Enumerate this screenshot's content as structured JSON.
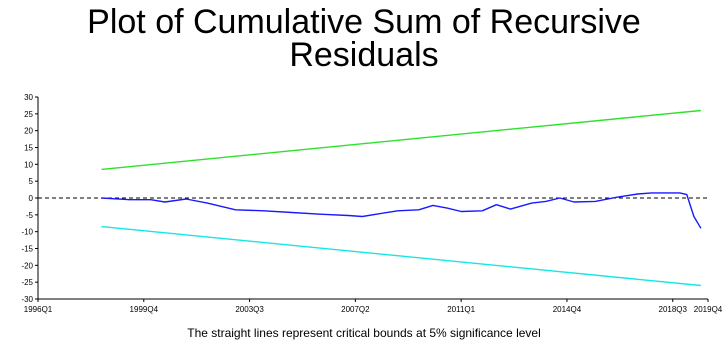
{
  "chart_data": {
    "type": "line",
    "title_lines": [
      "Plot of Cumulative Sum of Recursive",
      "Residuals"
    ],
    "xlabel": "",
    "ylabel": "",
    "x_tick_labels": [
      "1996Q1",
      "1999Q4",
      "2003Q3",
      "2007Q2",
      "2011Q1",
      "2014Q4",
      "2018Q3",
      "2019Q4"
    ],
    "y_ticks": [
      30,
      25,
      20,
      15,
      10,
      5,
      0,
      -5,
      -10,
      -15,
      -20,
      -25,
      -30
    ],
    "ylim": [
      -30,
      30
    ],
    "xlim": [
      "1996Q1",
      "2019Q4"
    ],
    "grid": false,
    "zero_line": {
      "value": 0,
      "style": "dashed",
      "color": "#000000"
    },
    "series": [
      {
        "role": "cusum",
        "color": "#1a1aff",
        "points": [
          [
            "1998Q2",
            0
          ],
          [
            "1999Q2",
            -0.5
          ],
          [
            "2000Q1",
            -0.5
          ],
          [
            "2000Q3",
            -1.2
          ],
          [
            "2001Q2",
            -0.3
          ],
          [
            "2002Q1",
            -1.5
          ],
          [
            "2003Q1",
            -3.5
          ],
          [
            "2004Q1",
            -3.8
          ],
          [
            "2005Q1",
            -4.3
          ],
          [
            "2006Q1",
            -4.8
          ],
          [
            "2007Q1",
            -5.2
          ],
          [
            "2007Q3",
            -5.5
          ],
          [
            "2008Q1",
            -4.8
          ],
          [
            "2008Q4",
            -3.8
          ],
          [
            "2009Q3",
            -3.5
          ],
          [
            "2010Q1",
            -2.2
          ],
          [
            "2010Q3",
            -3.0
          ],
          [
            "2011Q1",
            -4.0
          ],
          [
            "2011Q4",
            -3.8
          ],
          [
            "2012Q2",
            -2.0
          ],
          [
            "2012Q4",
            -3.3
          ],
          [
            "2013Q3",
            -1.5
          ],
          [
            "2014Q1",
            -1.0
          ],
          [
            "2014Q3",
            0
          ],
          [
            "2015Q1",
            -1.2
          ],
          [
            "2015Q4",
            -1.0
          ],
          [
            "2016Q3",
            0.2
          ],
          [
            "2017Q2",
            1.2
          ],
          [
            "2017Q4",
            1.5
          ],
          [
            "2018Q2",
            1.5
          ],
          [
            "2018Q4",
            1.5
          ],
          [
            "2019Q1",
            1.0
          ],
          [
            "2019Q2",
            -5.5
          ],
          [
            "2019Q3",
            -9.0
          ]
        ]
      },
      {
        "role": "upper-bound",
        "color": "#2ee02e",
        "points": [
          [
            "1998Q2",
            8.5
          ],
          [
            "2019Q3",
            26
          ]
        ]
      },
      {
        "role": "lower-bound",
        "color": "#16e6e6",
        "points": [
          [
            "1998Q2",
            -8.5
          ],
          [
            "2019Q3",
            -26
          ]
        ]
      }
    ],
    "footnote": "The straight lines represent critical bounds at 5% significance level"
  }
}
